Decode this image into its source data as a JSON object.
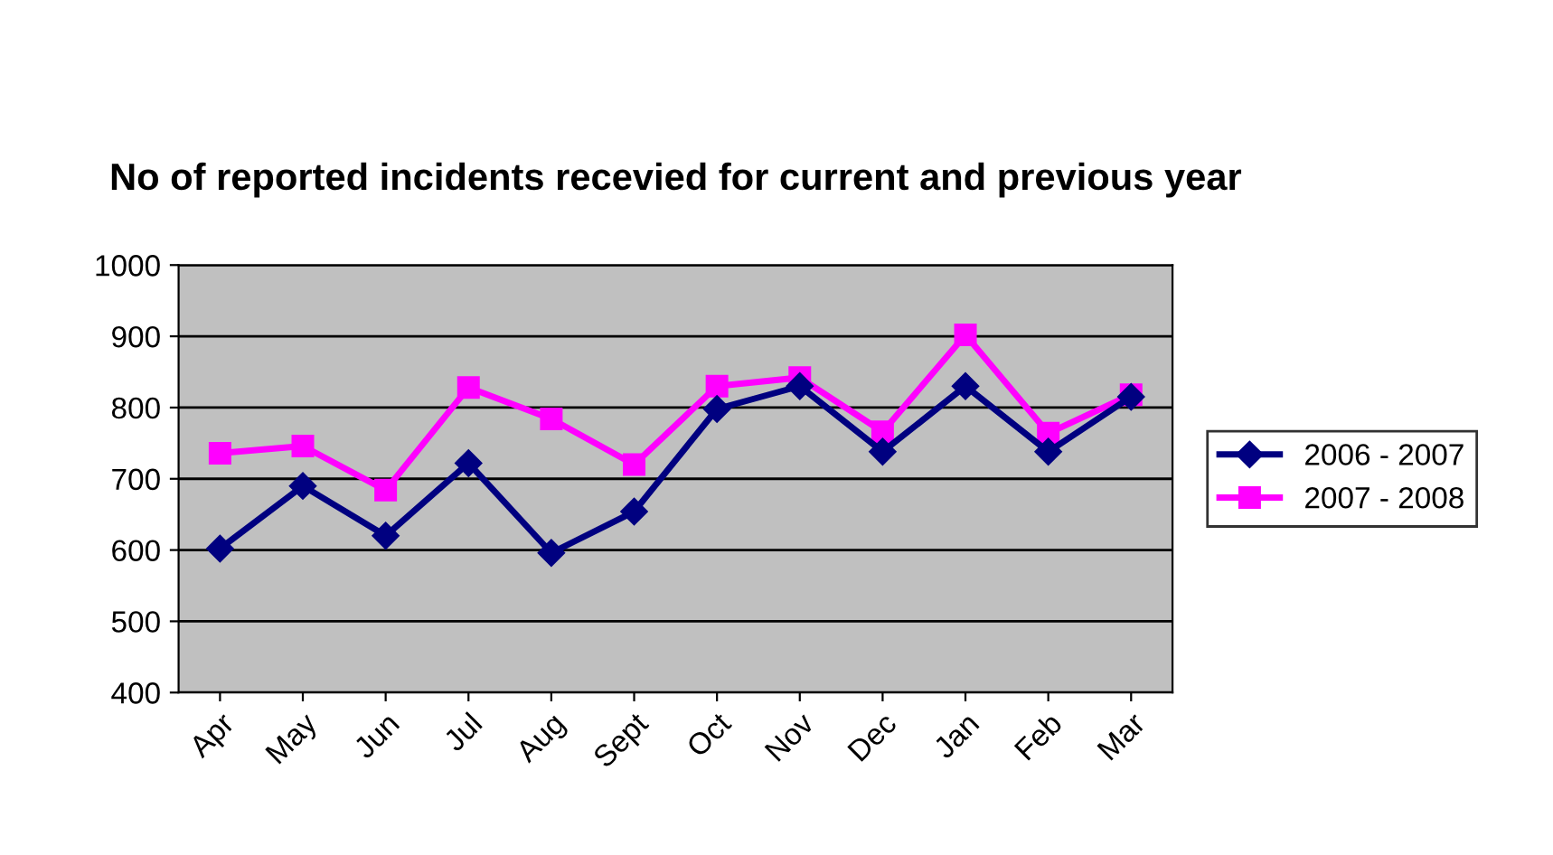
{
  "chart_data": {
    "type": "line",
    "title": "No of reported incidents recevied for current and previous year",
    "categories": [
      "Apr",
      "May",
      "Jun",
      "Jul",
      "Aug",
      "Sept",
      "Oct",
      "Nov",
      "Dec",
      "Jan",
      "Feb",
      "Mar"
    ],
    "series": [
      {
        "name": "2006 - 2007",
        "color": "#000080",
        "marker": "diamond",
        "values": [
          602,
          690,
          620,
          722,
          596,
          654,
          798,
          830,
          738,
          830,
          738,
          815
        ]
      },
      {
        "name": "2007 - 2008",
        "color": "#ff00ff",
        "marker": "square",
        "values": [
          736,
          746,
          684,
          828,
          784,
          720,
          830,
          842,
          766,
          902,
          764,
          818
        ]
      }
    ],
    "ylim": [
      400,
      1000
    ],
    "yticks": [
      400,
      500,
      600,
      700,
      800,
      900,
      1000
    ],
    "grid": "y",
    "legend": "right",
    "line_style": "solid"
  }
}
